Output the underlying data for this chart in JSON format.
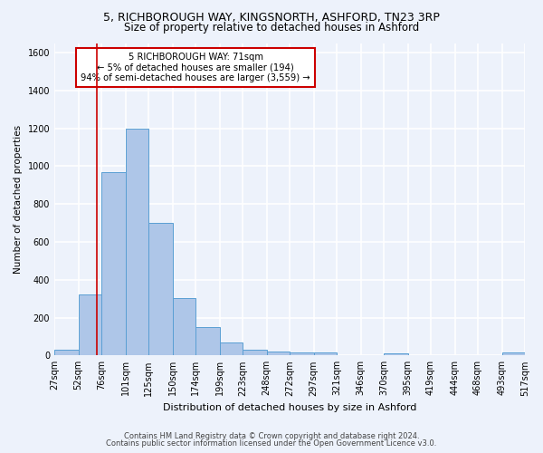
{
  "title1": "5, RICHBOROUGH WAY, KINGSNORTH, ASHFORD, TN23 3RP",
  "title2": "Size of property relative to detached houses in Ashford",
  "xlabel": "Distribution of detached houses by size in Ashford",
  "ylabel": "Number of detached properties",
  "annotation_line1": "5 RICHBOROUGH WAY: 71sqm",
  "annotation_line2": "← 5% of detached houses are smaller (194)",
  "annotation_line3": "94% of semi-detached houses are larger (3,559) →",
  "footer1": "Contains HM Land Registry data © Crown copyright and database right 2024.",
  "footer2": "Contains public sector information licensed under the Open Government Licence v3.0.",
  "bar_edges": [
    27,
    52,
    76,
    101,
    125,
    150,
    174,
    199,
    223,
    248,
    272,
    297,
    321,
    346,
    370,
    395,
    419,
    444,
    468,
    493,
    517
  ],
  "bar_heights": [
    30,
    320,
    970,
    1200,
    700,
    305,
    150,
    70,
    30,
    20,
    15,
    15,
    0,
    0,
    10,
    0,
    0,
    0,
    0,
    15
  ],
  "bar_color": "#aec6e8",
  "bar_edge_color": "#5a9fd4",
  "property_line_x": 71,
  "property_line_color": "#cc0000",
  "annotation_box_color": "#cc0000",
  "ylim": [
    0,
    1650
  ],
  "yticks": [
    0,
    200,
    400,
    600,
    800,
    1000,
    1200,
    1400,
    1600
  ],
  "background_color": "#edf2fb",
  "grid_color": "#ffffff",
  "title1_fontsize": 9.0,
  "title2_fontsize": 8.5,
  "xlabel_fontsize": 8.0,
  "ylabel_fontsize": 7.5,
  "tick_fontsize": 7.0,
  "annotation_fontsize": 7.2,
  "footer_fontsize": 6.0
}
